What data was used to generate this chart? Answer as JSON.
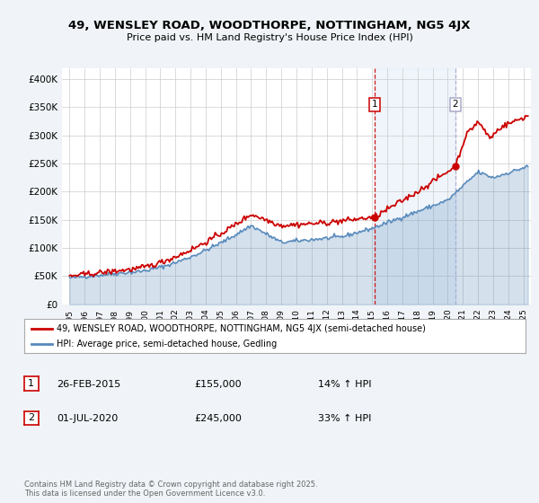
{
  "title": "49, WENSLEY ROAD, WOODTHORPE, NOTTINGHAM, NG5 4JX",
  "subtitle": "Price paid vs. HM Land Registry's House Price Index (HPI)",
  "legend_line1": "49, WENSLEY ROAD, WOODTHORPE, NOTTINGHAM, NG5 4JX (semi-detached house)",
  "legend_line2": "HPI: Average price, semi-detached house, Gedling",
  "sale1_date": "26-FEB-2015",
  "sale1_price": "£155,000",
  "sale1_hpi": "14% ↑ HPI",
  "sale2_date": "01-JUL-2020",
  "sale2_price": "£245,000",
  "sale2_hpi": "33% ↑ HPI",
  "footer": "Contains HM Land Registry data © Crown copyright and database right 2025.\nThis data is licensed under the Open Government Licence v3.0.",
  "red_color": "#cc0000",
  "blue_color": "#5588bb",
  "vline_color": "#cc0000",
  "bg_color": "#f0f4f8",
  "plot_bg": "#ffffff",
  "ylim": [
    0,
    420000
  ],
  "yticks": [
    0,
    50000,
    100000,
    150000,
    200000,
    250000,
    300000,
    350000,
    400000
  ],
  "ytick_labels": [
    "£0",
    "£50K",
    "£100K",
    "£150K",
    "£200K",
    "£250K",
    "£300K",
    "£350K",
    "£400K"
  ],
  "sale1_year": 2015.15,
  "sale1_value": 155000,
  "sale2_year": 2020.5,
  "sale2_value": 245000,
  "vline1_year": 2015.15,
  "vline2_year": 2020.5,
  "xmin": 1994.5,
  "xmax": 2025.5
}
